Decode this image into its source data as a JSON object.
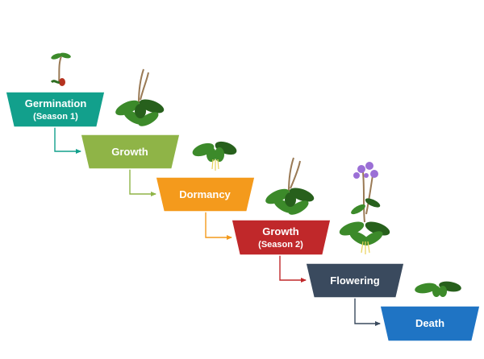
{
  "stages": [
    {
      "id": "germination",
      "label": "Germination",
      "sub": "(Season 1)",
      "color": "#12a08c"
    },
    {
      "id": "growth-1",
      "label": "Growth",
      "sub": "",
      "color": "#8fb447"
    },
    {
      "id": "dormancy",
      "label": "Dormancy",
      "sub": "",
      "color": "#f49a1c"
    },
    {
      "id": "growth-2",
      "label": "Growth",
      "sub": "(Season 2)",
      "color": "#c0282a"
    },
    {
      "id": "flowering",
      "label": "Flowering",
      "sub": "",
      "color": "#3a4a5e"
    },
    {
      "id": "death",
      "label": "Death",
      "sub": "",
      "color": "#1f74c4"
    }
  ],
  "connector_colors": [
    "#12a08c",
    "#8fb447",
    "#f49a1c",
    "#c0282a",
    "#3a4a5e"
  ],
  "plant_colors": {
    "leaf": "#3c8a2a",
    "leaf_dark": "#27601c",
    "stem": "#9a7a55",
    "flower": "#9b6fd6",
    "root": "#e8d25a",
    "seed": "#b5321f"
  }
}
